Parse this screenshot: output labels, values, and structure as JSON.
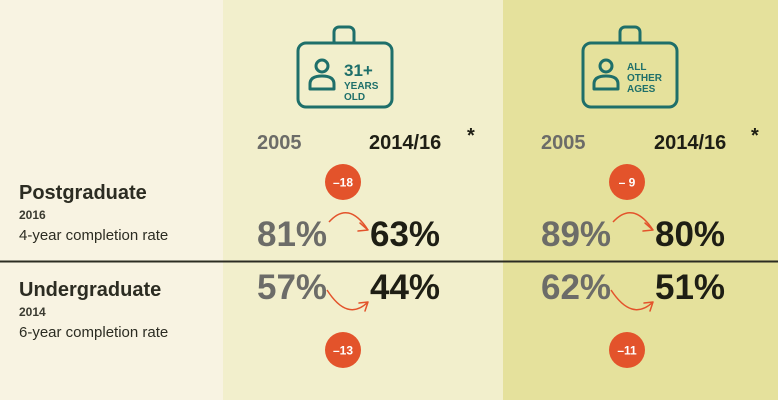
{
  "colors": {
    "label_panel": "#f8f3e2",
    "group1_panel": "#f2efcc",
    "group2_panel": "#e5e19c",
    "icon_teal": "#1e6f6a",
    "badge": "#e3532b",
    "value_old": "#6c6c68",
    "value_new": "#1e1e14",
    "text": "#2c2c22"
  },
  "groups": [
    {
      "icon_lines": [
        "31+",
        "YEARS",
        "OLD"
      ],
      "icon": "id-badge-person-icon"
    },
    {
      "icon_lines": [
        "ALL",
        "OTHER",
        "AGES"
      ],
      "icon": "id-badge-person-icon"
    }
  ],
  "rows": [
    {
      "title": "Postgraduate",
      "year": "2016",
      "subtitle": "4-year completion rate"
    },
    {
      "title": "Undergraduate",
      "year": "2014",
      "subtitle": "6-year completion rate"
    }
  ],
  "chart_data": {
    "type": "table",
    "column_headers": [
      "2005",
      "2014/16"
    ],
    "header_asterisk": "*",
    "values": [
      [
        {
          "old": "81%",
          "new": "63%",
          "change": "–18"
        },
        {
          "old": "89%",
          "new": "80%",
          "change": "– 9"
        }
      ],
      [
        {
          "old": "57%",
          "new": "44%",
          "change": "–13"
        },
        {
          "old": "62%",
          "new": "51%",
          "change": "–11"
        }
      ]
    ]
  }
}
